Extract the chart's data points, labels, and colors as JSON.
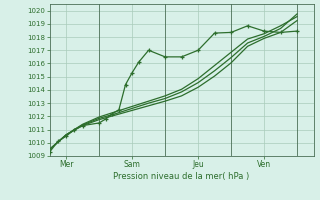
{
  "xlabel": "Pression niveau de la mer( hPa )",
  "bg_color": "#d8f0e8",
  "grid_color": "#aaccbb",
  "line_color": "#2d6e2d",
  "text_color": "#2d6e2d",
  "ylim": [
    1009,
    1020.5
  ],
  "yticks": [
    1009,
    1010,
    1011,
    1012,
    1013,
    1014,
    1015,
    1016,
    1017,
    1018,
    1019,
    1020
  ],
  "xlim": [
    0,
    8.0
  ],
  "day_positions": [
    0.5,
    2.5,
    4.5,
    6.5
  ],
  "day_labels": [
    "Mer",
    "Sam",
    "Jeu",
    "Ven"
  ],
  "vline_positions": [
    1.5,
    3.5,
    5.5,
    7.5
  ],
  "series1_x": [
    0.0,
    0.25,
    0.5,
    0.75,
    1.0,
    1.5,
    1.7,
    1.9,
    2.1,
    2.3,
    2.5,
    2.7,
    3.0,
    3.5,
    4.0,
    4.5,
    5.0,
    5.5,
    6.0,
    6.5,
    7.0,
    7.5
  ],
  "series1_y": [
    1009.3,
    1010.1,
    1010.5,
    1011.0,
    1011.3,
    1011.5,
    1011.8,
    1012.2,
    1012.5,
    1014.4,
    1015.3,
    1016.1,
    1017.0,
    1016.5,
    1016.5,
    1017.0,
    1018.3,
    1018.35,
    1018.85,
    1018.45,
    1018.35,
    1018.45
  ],
  "series2_x": [
    0.0,
    0.5,
    1.0,
    1.5,
    2.0,
    2.5,
    3.0,
    3.5,
    4.0,
    4.5,
    5.0,
    5.5,
    6.0,
    6.5,
    7.0,
    7.5
  ],
  "series2_y": [
    1009.5,
    1010.6,
    1011.3,
    1011.75,
    1012.1,
    1012.45,
    1012.8,
    1013.15,
    1013.55,
    1014.2,
    1015.05,
    1016.05,
    1017.3,
    1017.9,
    1018.35,
    1019.25
  ],
  "series3_x": [
    0.0,
    0.5,
    1.0,
    1.5,
    2.0,
    2.5,
    3.0,
    3.5,
    4.0,
    4.5,
    5.0,
    5.5,
    6.0,
    6.5,
    7.0,
    7.5
  ],
  "series3_y": [
    1009.5,
    1010.6,
    1011.4,
    1011.95,
    1012.35,
    1012.75,
    1013.15,
    1013.55,
    1014.05,
    1014.85,
    1015.85,
    1016.85,
    1017.85,
    1018.25,
    1018.85,
    1019.55
  ],
  "series4_x": [
    0.0,
    0.5,
    1.0,
    1.5,
    2.0,
    2.5,
    3.0,
    3.5,
    4.0,
    4.5,
    5.0,
    5.5,
    6.0,
    6.5,
    7.0,
    7.5
  ],
  "series4_y": [
    1009.5,
    1010.6,
    1011.35,
    1011.85,
    1012.2,
    1012.6,
    1013.0,
    1013.35,
    1013.85,
    1014.55,
    1015.45,
    1016.45,
    1017.55,
    1018.05,
    1018.65,
    1019.75
  ]
}
